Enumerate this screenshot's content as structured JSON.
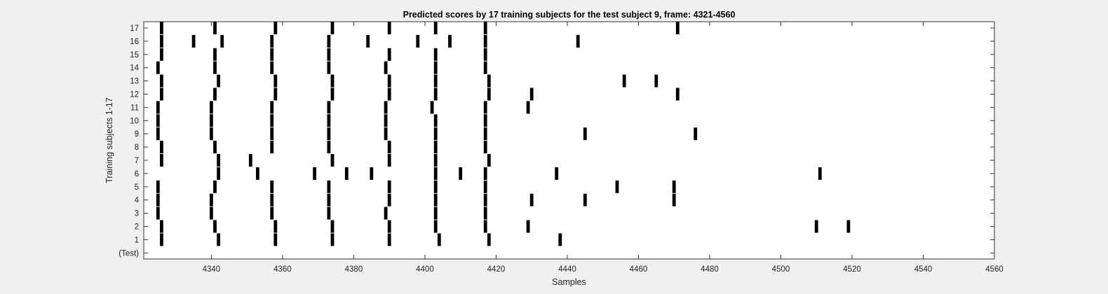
{
  "chart_data": {
    "type": "scatter",
    "title": "Predicted scores by 17 training subjects for the test subject 9, frame: 4321-4560",
    "xlabel": "Samples",
    "ylabel": "Training subjects 1-17",
    "xlim": [
      4321,
      4560
    ],
    "x_ticks": [
      4340,
      4360,
      4380,
      4400,
      4420,
      4440,
      4460,
      4480,
      4500,
      4520,
      4540,
      4560
    ],
    "y_categories": [
      "(Test)",
      "1",
      "2",
      "3",
      "4",
      "5",
      "6",
      "7",
      "8",
      "9",
      "10",
      "11",
      "12",
      "13",
      "14",
      "15",
      "16",
      "17"
    ],
    "grid": false,
    "mark_color": "#000000",
    "series": [
      {
        "row": "1",
        "x": [
          4326,
          4342,
          4358,
          4374,
          4390,
          4404,
          4418,
          4438
        ]
      },
      {
        "row": "2",
        "x": [
          4326,
          4341,
          4358,
          4374,
          4390,
          4403,
          4417,
          4429,
          4510,
          4519
        ]
      },
      {
        "row": "3",
        "x": [
          4325,
          4340,
          4357,
          4373,
          4389,
          4403,
          4417
        ]
      },
      {
        "row": "4",
        "x": [
          4325,
          4340,
          4357,
          4373,
          4390,
          4403,
          4417,
          4430,
          4445,
          4470
        ]
      },
      {
        "row": "5",
        "x": [
          4325,
          4341,
          4357,
          4373,
          4390,
          4403,
          4417,
          4454,
          4470
        ]
      },
      {
        "row": "6",
        "x": [
          4342,
          4353,
          4369,
          4378,
          4385,
          4403,
          4410,
          4417,
          4437,
          4511
        ]
      },
      {
        "row": "7",
        "x": [
          4326,
          4342,
          4351,
          4374,
          4390,
          4403,
          4418
        ]
      },
      {
        "row": "8",
        "x": [
          4326,
          4341,
          4357,
          4373,
          4390,
          4403,
          4417
        ]
      },
      {
        "row": "9",
        "x": [
          4325,
          4340,
          4357,
          4373,
          4389,
          4403,
          4417,
          4445,
          4476
        ]
      },
      {
        "row": "10",
        "x": [
          4325,
          4340,
          4357,
          4373,
          4389,
          4403,
          4417
        ]
      },
      {
        "row": "11",
        "x": [
          4325,
          4340,
          4357,
          4373,
          4389,
          4402,
          4417,
          4429
        ]
      },
      {
        "row": "12",
        "x": [
          4326,
          4341,
          4358,
          4374,
          4390,
          4403,
          4418,
          4430,
          4471
        ]
      },
      {
        "row": "13",
        "x": [
          4326,
          4342,
          4358,
          4374,
          4390,
          4403,
          4418,
          4456,
          4465
        ]
      },
      {
        "row": "14",
        "x": [
          4325,
          4341,
          4357,
          4373,
          4389,
          4403,
          4417
        ]
      },
      {
        "row": "15",
        "x": [
          4326,
          4341,
          4357,
          4373,
          4390,
          4403,
          4417
        ]
      },
      {
        "row": "16",
        "x": [
          4326,
          4335,
          4343,
          4357,
          4373,
          4384,
          4398,
          4407,
          4417,
          4443
        ]
      },
      {
        "row": "17",
        "x": [
          4326,
          4341,
          4358,
          4374,
          4390,
          4403,
          4417,
          4471
        ]
      }
    ]
  }
}
